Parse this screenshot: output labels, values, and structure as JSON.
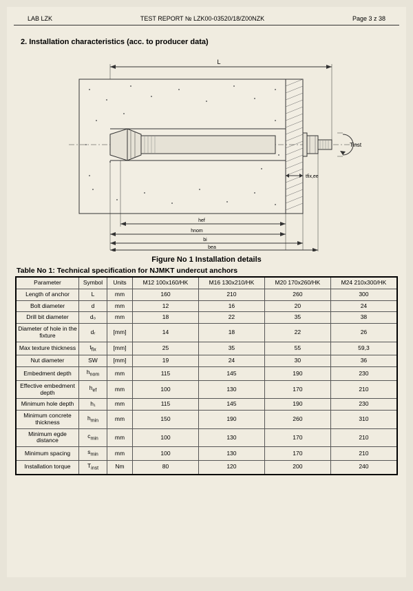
{
  "header": {
    "lab": "LAB LZK",
    "title": "TEST REPORT № LZK00-03520/18/Z00NZK",
    "page": "Page 3 z 38"
  },
  "section_heading": "2.  Installation characteristics (acc. to producer data)",
  "figure_caption": "Figure No 1 Installation details",
  "table_caption": "Table No 1: Technical specification  for NJMKT undercut  anchors",
  "diagram": {
    "labels": {
      "L": "L",
      "Tinst": "Tinst",
      "tfix": "tfix,ee",
      "hef": "hef",
      "hnom": "hnom",
      "bi": "bi",
      "bea": "bea"
    },
    "colors": {
      "outline": "#333333",
      "dim": "#333333",
      "concrete_fill": "#f2eee3",
      "hatch": "#666666",
      "anchor_body": "#e6e2d6"
    }
  },
  "table": {
    "columns": [
      "Parameter",
      "Symbol",
      "Units",
      "M12 100x160/HK",
      "M16 130x210/HK",
      "M20 170x260/HK",
      "M24 210x300/HK"
    ],
    "rows": [
      {
        "param": "Length of anchor",
        "symbol": "L",
        "unit": "mm",
        "v": [
          "160",
          "210",
          "260",
          "300"
        ]
      },
      {
        "param": "Bolt diameter",
        "symbol": "d",
        "unit": "mm",
        "v": [
          "12",
          "16",
          "20",
          "24"
        ]
      },
      {
        "param": "Drill bit diameter",
        "symbol": "d₀",
        "unit": "mm",
        "v": [
          "18",
          "22",
          "35",
          "38"
        ]
      },
      {
        "param": "Diameter of hole in the fixture",
        "symbol": "dᵣ",
        "unit": "[mm]",
        "v": [
          "14",
          "18",
          "22",
          "26"
        ]
      },
      {
        "param": "Max texture thickness",
        "symbol": "t_fix",
        "unit": "[mm]",
        "v": [
          "25",
          "35",
          "55",
          "59,3"
        ]
      },
      {
        "param": "Nut diameter",
        "symbol": "SW",
        "unit": "[mm]",
        "v": [
          "19",
          "24",
          "30",
          "36"
        ]
      },
      {
        "param": "Embedment depth",
        "symbol": "h_nom",
        "unit": "mm",
        "v": [
          "115",
          "145",
          "190",
          "230"
        ]
      },
      {
        "param": "Effective embedment depth",
        "symbol": "h_ef",
        "unit": "mm",
        "v": [
          "100",
          "130",
          "170",
          "210"
        ]
      },
      {
        "param": "Minimum hole depth",
        "symbol": "h₁",
        "unit": "mm",
        "v": [
          "115",
          "145",
          "190",
          "230"
        ]
      },
      {
        "param": "Minimum concrete thickness",
        "symbol": "h_min",
        "unit": "mm",
        "v": [
          "150",
          "190",
          "260",
          "310"
        ]
      },
      {
        "param": "Minimum egde distance",
        "symbol": "c_min",
        "unit": "mm",
        "v": [
          "100",
          "130",
          "170",
          "210"
        ]
      },
      {
        "param": "Minimum spacing",
        "symbol": "s_min",
        "unit": "mm",
        "v": [
          "100",
          "130",
          "170",
          "210"
        ]
      },
      {
        "param": "Installation torque",
        "symbol": "T_inst",
        "unit": "Nm",
        "v": [
          "80",
          "120",
          "200",
          "240"
        ]
      }
    ]
  }
}
